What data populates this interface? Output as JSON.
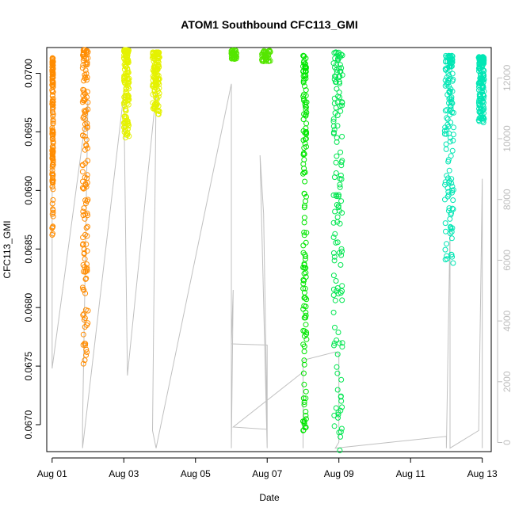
{
  "chart_data": {
    "type": "scatter",
    "title": "ATOM1 Southbound CFC113_GMI",
    "xlabel": "Date",
    "ylabel": "CFC113_GMI",
    "x_ticks": [
      "Aug 01",
      "Aug 03",
      "Aug 05",
      "Aug 07",
      "Aug 09",
      "Aug 11",
      "Aug 13"
    ],
    "y_ticks": [
      "0.0670",
      "0.0675",
      "0.0680",
      "0.0685",
      "0.0690",
      "0.0695",
      "0.0700"
    ],
    "y2_ticks": [
      "0",
      "2000",
      "4000",
      "6000",
      "8000",
      "10000",
      "12000"
    ],
    "xlim_days": [
      0.85,
      13.25
    ],
    "ylim": [
      0.06677,
      0.07022
    ],
    "y2lim": [
      -300,
      13000
    ],
    "colors": {
      "orange": "#FF8C00",
      "yellow": "#E5F200",
      "green_light": "#55E600",
      "green": "#00E600",
      "green_cyan": "#00E650",
      "cyan": "#00E6B4",
      "altitude": "#C0C0C0",
      "axis": "#000000",
      "y2_axis": "#BEBEBE"
    },
    "series": [
      {
        "color": "orange",
        "x_start": 1.0,
        "x_end": 1.03,
        "y_min": 0.06862,
        "y_max": 0.07013,
        "style": "column"
      },
      {
        "color": "orange",
        "x_start": 1.85,
        "x_end": 2.0,
        "y_min": 0.06752,
        "y_max": 0.0702,
        "style": "column"
      },
      {
        "color": "yellow",
        "x_start": 3.0,
        "x_end": 3.15,
        "y_min": 0.06945,
        "y_max": 0.0702,
        "style": "column"
      },
      {
        "color": "yellow",
        "x_start": 3.8,
        "x_end": 4.0,
        "y_min": 0.06965,
        "y_max": 0.07018,
        "style": "column"
      },
      {
        "color": "green_light",
        "x_start": 6.0,
        "x_end": 6.15,
        "y_min": 0.07012,
        "y_max": 0.0702,
        "style": "band"
      },
      {
        "color": "green_light",
        "x_start": 6.85,
        "x_end": 7.1,
        "y_min": 0.0701,
        "y_max": 0.0702,
        "style": "band"
      },
      {
        "color": "green",
        "x_start": 8.0,
        "x_end": 8.1,
        "y_min": 0.06695,
        "y_max": 0.07015,
        "style": "column"
      },
      {
        "color": "green_cyan",
        "x_start": 8.85,
        "x_end": 9.1,
        "y_min": 0.06678,
        "y_max": 0.07018,
        "style": "column"
      },
      {
        "color": "cyan",
        "x_start": 11.95,
        "x_end": 12.2,
        "y_min": 0.06838,
        "y_max": 0.07015,
        "style": "column"
      },
      {
        "color": "cyan",
        "x_start": 12.9,
        "x_end": 13.05,
        "y_min": 0.06958,
        "y_max": 0.07014,
        "style": "column"
      }
    ],
    "altitude_profile": [
      [
        1.0,
        0.06976
      ],
      [
        1.0,
        0.06748
      ],
      [
        2.0,
        0.06976
      ],
      [
        1.85,
        0.067
      ],
      [
        1.85,
        0.0668
      ],
      [
        3.0,
        0.06983
      ],
      [
        3.1,
        0.06742
      ],
      [
        3.9,
        0.06983
      ],
      [
        3.8,
        0.06695
      ],
      [
        3.9,
        0.0668
      ],
      [
        6.0,
        0.06991
      ],
      [
        6.0,
        0.0668
      ],
      [
        6.05,
        0.06815
      ],
      [
        6.0,
        0.06769
      ],
      [
        7.0,
        0.06768
      ],
      [
        7.0,
        0.0668
      ],
      [
        6.8,
        0.0693
      ],
      [
        6.9,
        0.0688
      ],
      [
        7.0,
        0.06696
      ],
      [
        6.05,
        0.06698
      ],
      [
        8.0,
        0.06745
      ],
      [
        8.0,
        0.0668
      ],
      [
        8.0,
        0.06755
      ],
      [
        8.9,
        0.06762
      ],
      [
        9.0,
        0.0676
      ],
      [
        9.0,
        0.06685
      ],
      [
        8.9,
        0.0668
      ],
      [
        12.0,
        0.0669
      ],
      [
        12.0,
        0.0668
      ],
      [
        12.1,
        0.06868
      ],
      [
        12.1,
        0.0668
      ],
      [
        12.9,
        0.06695
      ],
      [
        13.0,
        0.0691
      ],
      [
        13.0,
        0.0668
      ]
    ]
  }
}
